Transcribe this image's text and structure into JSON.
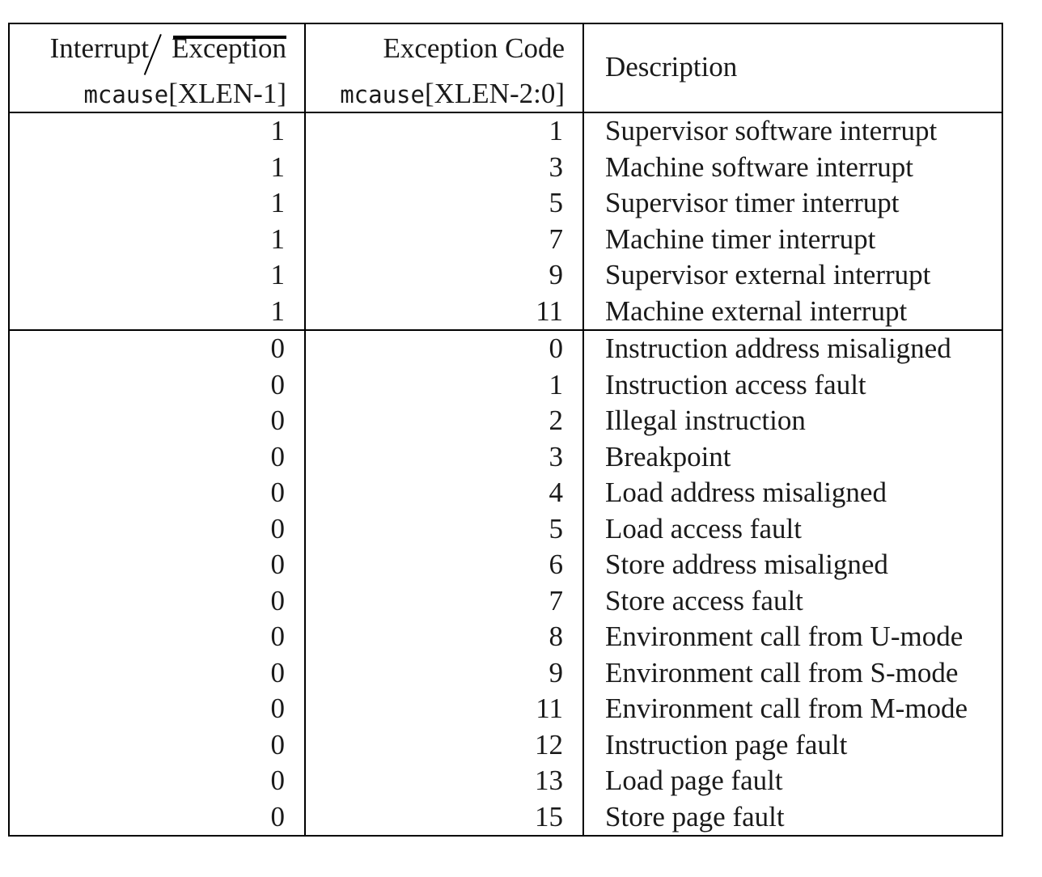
{
  "header": {
    "interrupt": "Interrupt",
    "exception": "Exception",
    "col1_field_mono": "mcause",
    "col1_field_bits": "[XLEN-1]",
    "col2_title": "Exception Code",
    "col2_field_mono": "mcause",
    "col2_field_bits": "[XLEN-2:0]",
    "col3_title": "Description"
  },
  "rows": [
    {
      "interrupt": "1",
      "code": "1",
      "description": "Supervisor software interrupt"
    },
    {
      "interrupt": "1",
      "code": "3",
      "description": "Machine software interrupt"
    },
    {
      "interrupt": "1",
      "code": "5",
      "description": "Supervisor timer interrupt"
    },
    {
      "interrupt": "1",
      "code": "7",
      "description": "Machine timer interrupt"
    },
    {
      "interrupt": "1",
      "code": "9",
      "description": "Supervisor external interrupt"
    },
    {
      "interrupt": "1",
      "code": "11",
      "description": "Machine external interrupt"
    },
    {
      "interrupt": "0",
      "code": "0",
      "description": "Instruction address misaligned"
    },
    {
      "interrupt": "0",
      "code": "1",
      "description": "Instruction access fault"
    },
    {
      "interrupt": "0",
      "code": "2",
      "description": "Illegal instruction"
    },
    {
      "interrupt": "0",
      "code": "3",
      "description": "Breakpoint"
    },
    {
      "interrupt": "0",
      "code": "4",
      "description": "Load address misaligned"
    },
    {
      "interrupt": "0",
      "code": "5",
      "description": "Load access fault"
    },
    {
      "interrupt": "0",
      "code": "6",
      "description": "Store address misaligned"
    },
    {
      "interrupt": "0",
      "code": "7",
      "description": "Store access fault"
    },
    {
      "interrupt": "0",
      "code": "8",
      "description": "Environment call from U-mode"
    },
    {
      "interrupt": "0",
      "code": "9",
      "description": "Environment call from S-mode"
    },
    {
      "interrupt": "0",
      "code": "11",
      "description": "Environment call from M-mode"
    },
    {
      "interrupt": "0",
      "code": "12",
      "description": "Instruction page fault"
    },
    {
      "interrupt": "0",
      "code": "13",
      "description": "Load page fault"
    },
    {
      "interrupt": "0",
      "code": "15",
      "description": "Store page fault"
    }
  ]
}
